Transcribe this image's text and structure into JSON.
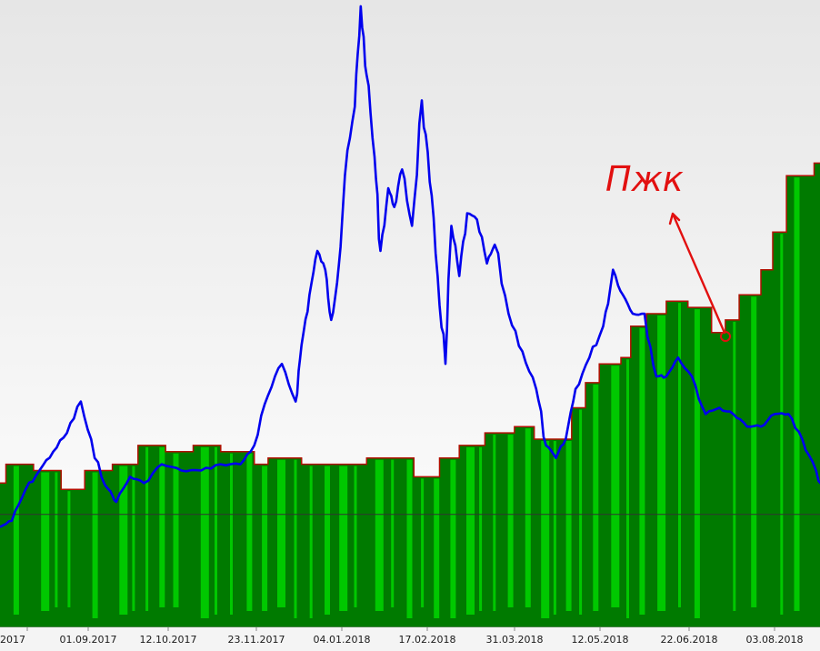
{
  "chart_data": {
    "type": "area",
    "title": "",
    "xlabel": "",
    "ylabel": "",
    "grid": false,
    "legend": "none",
    "x_ticks": [
      "2017",
      "01.09.2017",
      "12.10.2017",
      "23.11.2017",
      "04.01.2018",
      "17.02.2018",
      "31.03.2018",
      "12.05.2018",
      "22.06.2018",
      "03.08.2018"
    ],
    "x_range": [
      "2017-07-20",
      "2018-09-09"
    ],
    "y_range": [
      0,
      100
    ],
    "baseline": 18,
    "series": [
      {
        "kind": "equity-area",
        "color": "#007a00",
        "color_light": "#00c800",
        "edge_color": "#b01000",
        "steps": [
          [
            "2017-07-20",
            23
          ],
          [
            "2017-07-23",
            26
          ],
          [
            "2017-08-06",
            25
          ],
          [
            "2017-08-20",
            22
          ],
          [
            "2017-09-01",
            25
          ],
          [
            "2017-09-15",
            26
          ],
          [
            "2017-09-28",
            29
          ],
          [
            "2017-10-12",
            28
          ],
          [
            "2017-10-26",
            29
          ],
          [
            "2017-11-09",
            28
          ],
          [
            "2017-11-26",
            26
          ],
          [
            "2017-12-03",
            27
          ],
          [
            "2017-12-20",
            26
          ],
          [
            "2018-01-19",
            26
          ],
          [
            "2018-01-22",
            27
          ],
          [
            "2018-02-15",
            24
          ],
          [
            "2018-02-28",
            27
          ],
          [
            "2018-03-10",
            29
          ],
          [
            "2018-03-23",
            31
          ],
          [
            "2018-04-07",
            32
          ],
          [
            "2018-04-17",
            30
          ],
          [
            "2018-05-06",
            35
          ],
          [
            "2018-05-13",
            39
          ],
          [
            "2018-05-20",
            42
          ],
          [
            "2018-05-31",
            43
          ],
          [
            "2018-06-05",
            48
          ],
          [
            "2018-06-13",
            50
          ],
          [
            "2018-06-23",
            52
          ],
          [
            "2018-07-04",
            51
          ],
          [
            "2018-07-16",
            47
          ],
          [
            "2018-07-23",
            49
          ],
          [
            "2018-07-30",
            53
          ],
          [
            "2018-08-10",
            57
          ],
          [
            "2018-08-16",
            63
          ],
          [
            "2018-08-23",
            72
          ],
          [
            "2018-09-06",
            74
          ]
        ]
      },
      {
        "kind": "price-line",
        "color": "#0000ee",
        "points": [
          [
            "2017-07-20",
            16
          ],
          [
            "2017-07-26",
            17
          ],
          [
            "2017-08-02",
            22
          ],
          [
            "2017-08-09",
            25
          ],
          [
            "2017-08-16",
            28
          ],
          [
            "2017-08-23",
            31
          ],
          [
            "2017-08-30",
            36
          ],
          [
            "2017-09-06",
            27
          ],
          [
            "2017-09-13",
            22
          ],
          [
            "2017-09-17",
            20
          ],
          [
            "2017-09-24",
            24
          ],
          [
            "2017-10-01",
            23
          ],
          [
            "2017-10-10",
            26
          ],
          [
            "2017-10-20",
            25
          ],
          [
            "2017-10-30",
            25
          ],
          [
            "2017-11-09",
            26
          ],
          [
            "2017-11-19",
            26
          ],
          [
            "2017-11-26",
            29
          ],
          [
            "2017-12-03",
            37
          ],
          [
            "2017-12-10",
            42
          ],
          [
            "2017-12-17",
            36
          ],
          [
            "2017-12-20",
            45
          ],
          [
            "2017-12-24",
            53
          ],
          [
            "2017-12-28",
            60
          ],
          [
            "2018-01-01",
            57
          ],
          [
            "2018-01-04",
            49
          ],
          [
            "2018-01-08",
            58
          ],
          [
            "2018-01-11",
            72
          ],
          [
            "2018-01-16",
            83
          ],
          [
            "2018-01-19",
            99
          ],
          [
            "2018-01-22",
            88
          ],
          [
            "2018-01-26",
            75
          ],
          [
            "2018-01-29",
            60
          ],
          [
            "2018-02-02",
            70
          ],
          [
            "2018-02-05",
            67
          ],
          [
            "2018-02-09",
            73
          ],
          [
            "2018-02-14",
            64
          ],
          [
            "2018-02-19",
            84
          ],
          [
            "2018-02-23",
            71
          ],
          [
            "2018-02-27",
            56
          ],
          [
            "2018-03-03",
            42
          ],
          [
            "2018-03-06",
            64
          ],
          [
            "2018-03-10",
            56
          ],
          [
            "2018-03-14",
            66
          ],
          [
            "2018-03-19",
            65
          ],
          [
            "2018-03-24",
            58
          ],
          [
            "2018-03-28",
            61
          ],
          [
            "2018-04-04",
            50
          ],
          [
            "2018-04-11",
            44
          ],
          [
            "2018-04-18",
            38
          ],
          [
            "2018-04-23",
            29
          ],
          [
            "2018-04-28",
            27
          ],
          [
            "2018-05-03",
            30
          ],
          [
            "2018-05-08",
            38
          ],
          [
            "2018-05-15",
            43
          ],
          [
            "2018-05-22",
            48
          ],
          [
            "2018-05-27",
            57
          ],
          [
            "2018-06-01",
            53
          ],
          [
            "2018-06-06",
            50
          ],
          [
            "2018-06-12",
            50
          ],
          [
            "2018-06-18",
            40
          ],
          [
            "2018-06-23",
            40
          ],
          [
            "2018-06-29",
            43
          ],
          [
            "2018-07-06",
            40
          ],
          [
            "2018-07-13",
            34
          ],
          [
            "2018-07-20",
            35
          ],
          [
            "2018-07-27",
            34
          ],
          [
            "2018-08-03",
            32
          ],
          [
            "2018-08-10",
            32
          ],
          [
            "2018-08-17",
            34
          ],
          [
            "2018-08-24",
            34
          ],
          [
            "2018-08-31",
            30
          ],
          [
            "2018-09-07",
            25
          ],
          [
            "2018-09-12",
            20
          ],
          [
            "2018-09-16",
            23
          ],
          [
            "2018-09-20",
            22
          ]
        ]
      }
    ],
    "hline": {
      "value": 18,
      "color": "#333333"
    },
    "annotations": [
      {
        "text": "Пжк",
        "color": "#e21010",
        "point": [
          "2018-07-12",
          47
        ]
      }
    ]
  }
}
